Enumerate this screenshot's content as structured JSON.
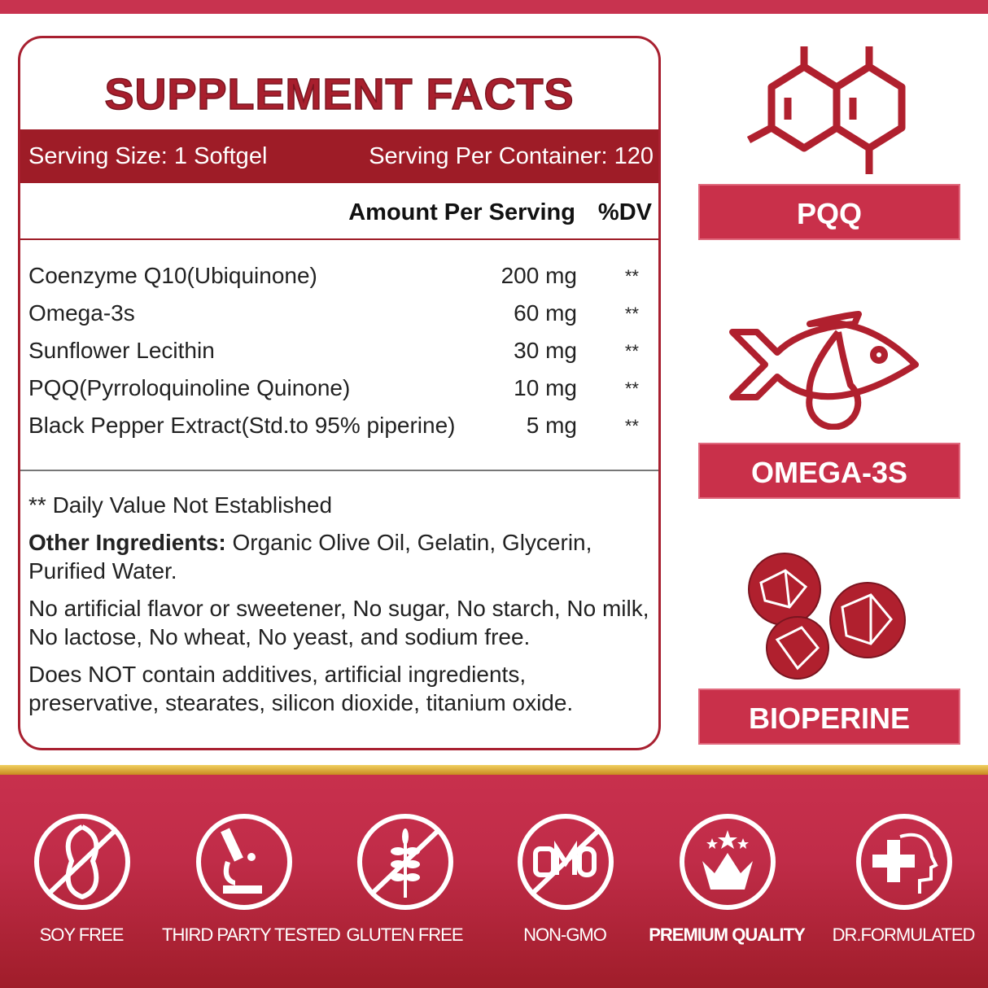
{
  "label": {
    "title": "SUPPLEMENT FACTS",
    "serving_size": "Serving Size:  1 Softgel",
    "servings_per_container": "Serving Per Container: 120",
    "col_amount": "Amount Per Serving",
    "col_dv": "%DV",
    "rows": [
      {
        "name": "Coenzyme Q10(Ubiquinone)",
        "amount": "200 mg",
        "dv": "**"
      },
      {
        "name": "Omega-3s",
        "amount": "60 mg",
        "dv": "**"
      },
      {
        "name": "Sunflower Lecithin",
        "amount": "30 mg",
        "dv": "**"
      },
      {
        "name": "PQQ(Pyrroloquinoline Quinone)",
        "amount": "10 mg",
        "dv": "**"
      },
      {
        "name": "Black Pepper Extract(Std.to 95% piperine)",
        "amount": "5 mg",
        "dv": "**"
      }
    ],
    "footnote": "** Daily Value Not Established",
    "other_label": "Other Ingredients:",
    "other_text": " Organic Olive Oil, Gelatin, Glycerin, Purified Water.",
    "free_from": "No artificial flavor or sweetener, No sugar, No starch, No milk, No lactose, No wheat, No yeast, and sodium free.",
    "no_additives": "Does NOT contain additives, artificial ingredients, preservative, stearates, silicon dioxide, titanium oxide."
  },
  "ingredients": [
    {
      "label": "PQQ",
      "icon": "molecule-icon"
    },
    {
      "label": "OMEGA-3S",
      "icon": "fish-icon"
    },
    {
      "label": "BIOPERINE",
      "icon": "peppercorn-icon"
    }
  ],
  "features": [
    {
      "label": "SOY FREE",
      "icon": "soy-free-icon"
    },
    {
      "label": "THIRD PARTY TESTED",
      "icon": "microscope-icon"
    },
    {
      "label": "GLUTEN FREE",
      "icon": "gluten-free-icon"
    },
    {
      "label": "NON-GMO",
      "icon": "non-gmo-icon"
    },
    {
      "label": "PREMIUM QUALITY",
      "icon": "crown-icon"
    },
    {
      "label": "DR.FORMULATED",
      "icon": "doctor-cross-icon"
    }
  ],
  "colors": {
    "brand_red": "#c8334f",
    "label_red": "#9e1c27",
    "gold": "#f0d060"
  }
}
